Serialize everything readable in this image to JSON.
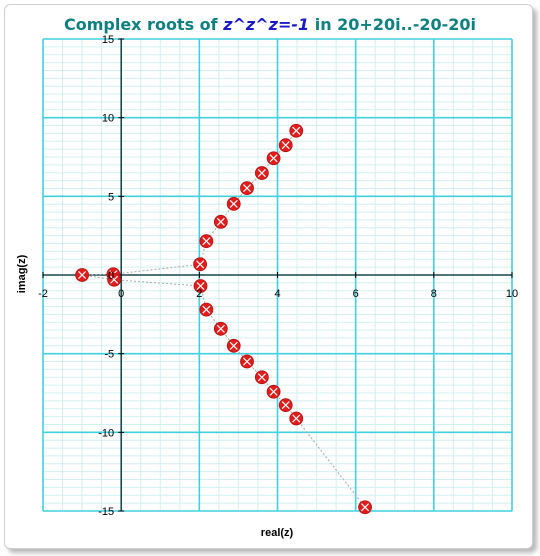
{
  "title": {
    "part1": "Complex roots of ",
    "part2": "z^z^z=-1",
    "part3": " in 20+20i..-20-20i"
  },
  "colors": {
    "minor_grid": "#d2f0f0",
    "major_grid": "#40d0e0",
    "marker_fill": "#e21c1c",
    "marker_cross": "#ffffff",
    "connector": "#a8a8a8",
    "title_main": "#0f8080",
    "title_equation": "#1a18c8"
  },
  "chart_data": {
    "type": "scatter",
    "xlabel": "real(z)",
    "ylabel": "imag(z)",
    "xlim": [
      -2,
      10
    ],
    "ylim": [
      -15,
      15
    ],
    "x_ticks": [
      "-2",
      "0",
      "2",
      "4",
      "6",
      "8",
      "10"
    ],
    "y_ticks": [
      "15",
      "10",
      "5",
      "0",
      "-5",
      "-10",
      "-15"
    ],
    "grid": true,
    "minor_step": 0.5,
    "connector_line": "dotted",
    "points": [
      {
        "x": 4.48,
        "y": 9.17
      },
      {
        "x": 4.21,
        "y": 8.25
      },
      {
        "x": 3.9,
        "y": 7.42
      },
      {
        "x": 3.6,
        "y": 6.48
      },
      {
        "x": 3.22,
        "y": 5.52
      },
      {
        "x": 2.88,
        "y": 4.52
      },
      {
        "x": 2.55,
        "y": 3.38
      },
      {
        "x": 2.18,
        "y": 2.15
      },
      {
        "x": 2.02,
        "y": 0.68
      },
      {
        "x": -0.2,
        "y": 0.05
      },
      {
        "x": -1.0,
        "y": 0.0
      },
      {
        "x": -0.18,
        "y": -0.3
      },
      {
        "x": 2.03,
        "y": -0.7
      },
      {
        "x": 2.18,
        "y": -2.2
      },
      {
        "x": 2.55,
        "y": -3.42
      },
      {
        "x": 2.88,
        "y": -4.5
      },
      {
        "x": 3.22,
        "y": -5.5
      },
      {
        "x": 3.6,
        "y": -6.5
      },
      {
        "x": 3.9,
        "y": -7.42
      },
      {
        "x": 4.21,
        "y": -8.27
      },
      {
        "x": 4.48,
        "y": -9.12
      },
      {
        "x": 6.24,
        "y": -14.76
      }
    ]
  }
}
